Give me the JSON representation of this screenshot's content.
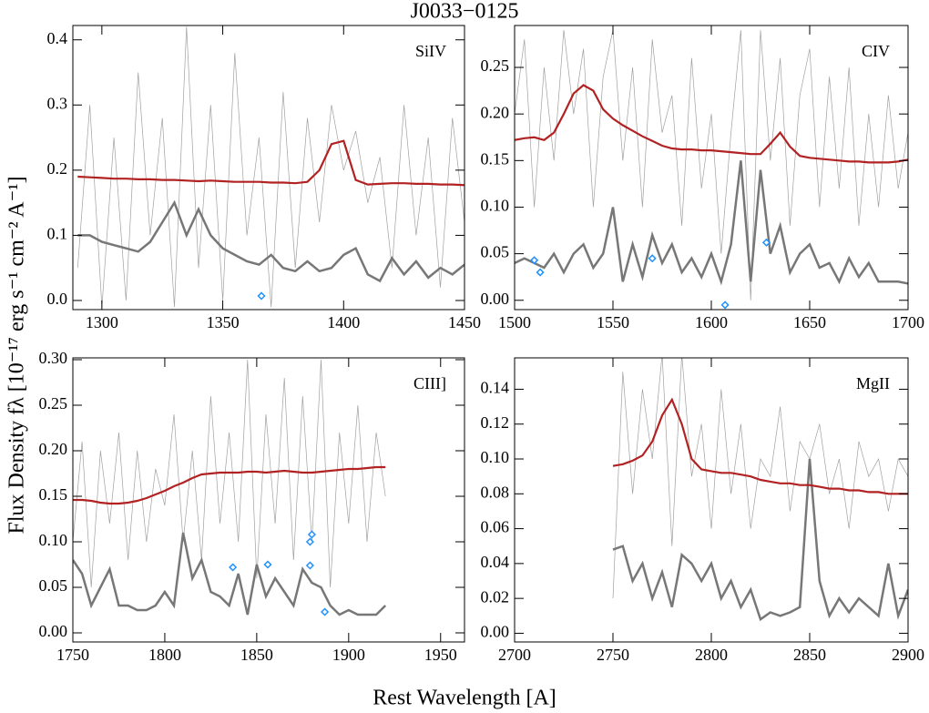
{
  "title": "J0033−0125",
  "xlabel": "Rest Wavelength [A]",
  "ylabel": "Flux Density fλ [10⁻¹⁷ erg s⁻¹ cm⁻² A⁻¹]",
  "chart_data": [
    {
      "type": "line",
      "label": "SiIV",
      "xlim": [
        1288,
        1450
      ],
      "ylim": [
        -0.014,
        0.422
      ],
      "xticks": [
        1300,
        1350,
        1400,
        1450
      ],
      "yticks": [
        {
          "value": 0,
          "label": "0.0"
        },
        0.1,
        0.2,
        0.3,
        0.4
      ],
      "x": [
        1290,
        1295,
        1300,
        1305,
        1310,
        1315,
        1320,
        1325,
        1330,
        1335,
        1340,
        1345,
        1350,
        1355,
        1360,
        1365,
        1370,
        1375,
        1380,
        1385,
        1390,
        1395,
        1400,
        1405,
        1410,
        1415,
        1420,
        1425,
        1430,
        1435,
        1440,
        1445,
        1450
      ],
      "series": [
        {
          "color": "#a0a0a0",
          "values": [
            0.05,
            0.3,
            -0.01,
            0.25,
            0.0,
            0.35,
            0.1,
            0.28,
            -0.01,
            0.42,
            0.05,
            0.3,
            0.0,
            0.38,
            0.1,
            0.25,
            -0.01,
            0.32,
            0.05,
            0.28,
            0.12,
            0.3,
            0.2,
            0.26,
            0.15,
            0.22,
            0.05,
            0.3,
            0.1,
            0.25,
            0.02,
            0.28,
            0.12
          ]
        },
        {
          "color": "#777777",
          "values": [
            0.1,
            0.1,
            0.09,
            0.085,
            0.08,
            0.075,
            0.09,
            0.12,
            0.15,
            0.1,
            0.14,
            0.1,
            0.08,
            0.07,
            0.06,
            0.055,
            0.07,
            0.05,
            0.045,
            0.06,
            0.045,
            0.05,
            0.07,
            0.08,
            0.04,
            0.03,
            0.065,
            0.04,
            0.06,
            0.035,
            0.05,
            0.04,
            0.055
          ]
        },
        {
          "color": "#b22222",
          "values": [
            0.19,
            0.189,
            0.188,
            0.187,
            0.187,
            0.186,
            0.186,
            0.185,
            0.185,
            0.184,
            0.183,
            0.184,
            0.183,
            0.182,
            0.182,
            0.182,
            0.181,
            0.181,
            0.18,
            0.182,
            0.2,
            0.24,
            0.245,
            0.185,
            0.178,
            0.179,
            0.18,
            0.18,
            0.179,
            0.179,
            0.178,
            0.178,
            0.177
          ]
        }
      ],
      "points": {
        "color": "#1e90ff",
        "x": [
          1366
        ],
        "values": [
          0.007
        ]
      }
    },
    {
      "type": "line",
      "label": "CIV",
      "xlim": [
        1500,
        1700
      ],
      "ylim": [
        -0.01,
        0.295
      ],
      "xticks": [
        1500,
        1550,
        1600,
        1650,
        1700
      ],
      "yticks": [
        {
          "value": 0,
          "label": "0.00"
        },
        0.05,
        {
          "value": 0.1,
          "label": "0.10"
        },
        0.15,
        {
          "value": 0.2,
          "label": "0.20"
        },
        0.25
      ],
      "x": [
        1500,
        1505,
        1510,
        1515,
        1520,
        1525,
        1530,
        1535,
        1540,
        1545,
        1550,
        1555,
        1560,
        1565,
        1570,
        1575,
        1580,
        1585,
        1590,
        1595,
        1600,
        1605,
        1610,
        1615,
        1620,
        1625,
        1630,
        1635,
        1640,
        1645,
        1650,
        1655,
        1660,
        1665,
        1670,
        1675,
        1680,
        1685,
        1690,
        1695,
        1700
      ],
      "series": [
        {
          "color": "#a0a0a0",
          "values": [
            0.2,
            0.28,
            0.1,
            0.25,
            0.15,
            0.29,
            0.2,
            0.27,
            0.1,
            0.24,
            0.29,
            0.15,
            0.25,
            0.1,
            0.28,
            0.18,
            0.22,
            0.08,
            0.26,
            0.12,
            0.2,
            0.05,
            0.18,
            0.29,
            0.0,
            0.29,
            0.15,
            0.26,
            0.08,
            0.22,
            0.27,
            0.1,
            0.24,
            0.12,
            0.25,
            0.08,
            0.2,
            0.1,
            0.22,
            0.12,
            0.18
          ]
        },
        {
          "color": "#777777",
          "values": [
            0.04,
            0.045,
            0.04,
            0.035,
            0.05,
            0.03,
            0.05,
            0.06,
            0.035,
            0.05,
            0.1,
            0.02,
            0.06,
            0.025,
            0.07,
            0.04,
            0.06,
            0.03,
            0.045,
            0.025,
            0.05,
            0.02,
            0.06,
            0.15,
            0.02,
            0.14,
            0.05,
            0.08,
            0.03,
            0.05,
            0.06,
            0.035,
            0.04,
            0.02,
            0.045,
            0.025,
            0.04,
            0.02,
            0.02,
            0.02,
            0.018
          ]
        },
        {
          "color": "#b22222",
          "values": [
            0.172,
            0.174,
            0.175,
            0.172,
            0.18,
            0.2,
            0.222,
            0.231,
            0.225,
            0.205,
            0.195,
            0.188,
            0.182,
            0.176,
            0.171,
            0.166,
            0.163,
            0.162,
            0.162,
            0.161,
            0.161,
            0.16,
            0.159,
            0.158,
            0.157,
            0.157,
            0.168,
            0.18,
            0.165,
            0.155,
            0.153,
            0.152,
            0.151,
            0.15,
            0.149,
            0.149,
            0.148,
            0.148,
            0.148,
            0.149,
            0.151
          ]
        }
      ],
      "points": {
        "color": "#1e90ff",
        "x": [
          1510,
          1513,
          1570,
          1607,
          1628
        ],
        "values": [
          0.043,
          0.03,
          0.045,
          -0.005,
          0.062
        ]
      }
    },
    {
      "type": "line",
      "label": "CIII]",
      "xlim": [
        1750,
        1963
      ],
      "ylim": [
        -0.01,
        0.302
      ],
      "xticks": [
        1750,
        1800,
        1850,
        1900,
        1950
      ],
      "yticks": [
        {
          "value": 0,
          "label": "0.00"
        },
        0.05,
        {
          "value": 0.1,
          "label": "0.10"
        },
        0.15,
        {
          "value": 0.2,
          "label": "0.20"
        },
        0.25,
        {
          "value": 0.3,
          "label": "0.30"
        }
      ],
      "x": [
        1750,
        1755,
        1760,
        1765,
        1770,
        1775,
        1780,
        1785,
        1790,
        1795,
        1800,
        1805,
        1810,
        1815,
        1820,
        1825,
        1830,
        1835,
        1840,
        1845,
        1850,
        1855,
        1860,
        1865,
        1870,
        1875,
        1880,
        1885,
        1890,
        1895,
        1900,
        1905,
        1910,
        1915,
        1920
      ],
      "series": [
        {
          "color": "#a0a0a0",
          "values": [
            0.1,
            0.21,
            0.05,
            0.2,
            0.12,
            0.22,
            0.08,
            0.2,
            0.1,
            0.18,
            0.14,
            0.24,
            0.1,
            0.2,
            0.08,
            0.26,
            0.12,
            0.22,
            0.1,
            0.3,
            0.06,
            0.24,
            0.12,
            0.28,
            0.08,
            0.26,
            0.1,
            0.3,
            0.05,
            0.22,
            0.12,
            0.25,
            0.1,
            0.22,
            0.15
          ]
        },
        {
          "color": "#777777",
          "values": [
            0.08,
            0.065,
            0.03,
            0.05,
            0.07,
            0.03,
            0.03,
            0.025,
            0.025,
            0.03,
            0.045,
            0.03,
            0.11,
            0.06,
            0.08,
            0.045,
            0.04,
            0.03,
            0.065,
            0.02,
            0.075,
            0.04,
            0.06,
            0.045,
            0.03,
            0.07,
            0.055,
            0.05,
            0.03,
            0.02,
            0.025,
            0.02,
            0.02,
            0.02,
            0.03
          ]
        },
        {
          "color": "#b22222",
          "values": [
            0.146,
            0.146,
            0.145,
            0.143,
            0.142,
            0.142,
            0.143,
            0.145,
            0.148,
            0.152,
            0.156,
            0.161,
            0.165,
            0.17,
            0.174,
            0.175,
            0.176,
            0.176,
            0.176,
            0.177,
            0.177,
            0.176,
            0.177,
            0.178,
            0.177,
            0.176,
            0.176,
            0.177,
            0.178,
            0.179,
            0.18,
            0.18,
            0.181,
            0.182,
            0.182
          ]
        }
      ],
      "points": {
        "color": "#1e90ff",
        "x": [
          1837,
          1856,
          1879,
          1879,
          1880,
          1887
        ],
        "values": [
          0.072,
          0.075,
          0.074,
          0.1,
          0.108,
          0.023
        ]
      }
    },
    {
      "type": "line",
      "label": "MgII",
      "xlim": [
        2700,
        2900
      ],
      "ylim": [
        -0.005,
        0.158
      ],
      "xticks": [
        2700,
        2750,
        2800,
        2850,
        2900
      ],
      "yticks": [
        {
          "value": 0,
          "label": "0.00"
        },
        0.02,
        0.04,
        0.06,
        0.08,
        {
          "value": 0.1,
          "label": "0.10"
        },
        0.12,
        0.14
      ],
      "x": [
        2750,
        2755,
        2760,
        2765,
        2770,
        2775,
        2780,
        2785,
        2790,
        2795,
        2800,
        2805,
        2810,
        2815,
        2820,
        2825,
        2830,
        2835,
        2840,
        2845,
        2850,
        2855,
        2860,
        2865,
        2870,
        2875,
        2880,
        2885,
        2890,
        2895,
        2900
      ],
      "series": [
        {
          "color": "#a0a0a0",
          "values": [
            0.02,
            0.15,
            0.08,
            0.14,
            0.1,
            0.16,
            0.05,
            0.16,
            0.09,
            0.12,
            0.06,
            0.14,
            0.08,
            0.12,
            0.06,
            0.1,
            0.09,
            0.13,
            0.07,
            0.11,
            0.1,
            0.12,
            0.08,
            0.1,
            0.06,
            0.11,
            0.09,
            0.1,
            0.07,
            0.1,
            0.09
          ]
        },
        {
          "color": "#777777",
          "values": [
            0.048,
            0.05,
            0.03,
            0.04,
            0.02,
            0.035,
            0.015,
            0.045,
            0.04,
            0.03,
            0.04,
            0.02,
            0.03,
            0.015,
            0.025,
            0.008,
            0.012,
            0.01,
            0.012,
            0.015,
            0.1,
            0.03,
            0.01,
            0.02,
            0.012,
            0.02,
            0.015,
            0.01,
            0.04,
            0.01,
            0.025
          ]
        },
        {
          "color": "#b22222",
          "values": [
            0.096,
            0.097,
            0.099,
            0.102,
            0.11,
            0.125,
            0.134,
            0.12,
            0.1,
            0.094,
            0.093,
            0.092,
            0.092,
            0.091,
            0.09,
            0.088,
            0.087,
            0.086,
            0.086,
            0.085,
            0.085,
            0.084,
            0.083,
            0.083,
            0.082,
            0.082,
            0.081,
            0.081,
            0.08,
            0.08,
            0.08
          ]
        }
      ],
      "points": {
        "color": "#1e90ff",
        "x": [],
        "values": []
      }
    }
  ]
}
